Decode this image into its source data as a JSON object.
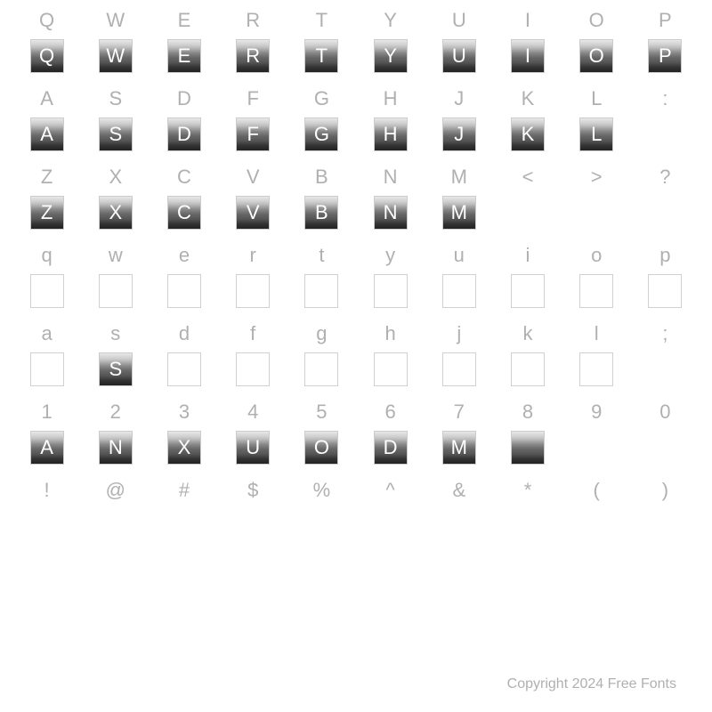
{
  "background_color": "#ffffff",
  "label_color": "#b0b0b0",
  "label_fontsize": 22,
  "glyph_size": 38,
  "glyph_letter_color": "#ffffff",
  "gradient_stops": [
    "#e8e8e8",
    "#d0d0d0",
    "#b8b8b8",
    "#888888",
    "#666666",
    "#555555",
    "#333333",
    "#222222"
  ],
  "footer_text": "Copyright 2024 Free Fonts",
  "rows": [
    {
      "keys": [
        "Q",
        "W",
        "E",
        "R",
        "T",
        "Y",
        "U",
        "I",
        "O",
        "P"
      ],
      "glyphs": [
        {
          "type": "gradient",
          "letter": "Q"
        },
        {
          "type": "gradient",
          "letter": "W"
        },
        {
          "type": "gradient",
          "letter": "E"
        },
        {
          "type": "gradient",
          "letter": "R"
        },
        {
          "type": "gradient",
          "letter": "T"
        },
        {
          "type": "gradient",
          "letter": "Y"
        },
        {
          "type": "gradient",
          "letter": "U"
        },
        {
          "type": "gradient",
          "letter": "I"
        },
        {
          "type": "gradient",
          "letter": "O"
        },
        {
          "type": "gradient",
          "letter": "P"
        }
      ]
    },
    {
      "keys": [
        "A",
        "S",
        "D",
        "F",
        "G",
        "H",
        "J",
        "K",
        "L",
        ":"
      ],
      "glyphs": [
        {
          "type": "gradient",
          "letter": "A"
        },
        {
          "type": "gradient",
          "letter": "S"
        },
        {
          "type": "gradient",
          "letter": "D"
        },
        {
          "type": "gradient",
          "letter": "F"
        },
        {
          "type": "gradient",
          "letter": "G"
        },
        {
          "type": "gradient",
          "letter": "H"
        },
        {
          "type": "gradient",
          "letter": "J"
        },
        {
          "type": "gradient",
          "letter": "K"
        },
        {
          "type": "gradient",
          "letter": "L"
        },
        {
          "type": "empty"
        }
      ]
    },
    {
      "keys": [
        "Z",
        "X",
        "C",
        "V",
        "B",
        "N",
        "M",
        "<",
        ">",
        "?"
      ],
      "glyphs": [
        {
          "type": "gradient",
          "letter": "Z"
        },
        {
          "type": "gradient",
          "letter": "X"
        },
        {
          "type": "gradient",
          "letter": "C"
        },
        {
          "type": "gradient",
          "letter": "V"
        },
        {
          "type": "gradient",
          "letter": "B"
        },
        {
          "type": "gradient",
          "letter": "N"
        },
        {
          "type": "gradient",
          "letter": "M"
        },
        {
          "type": "empty"
        },
        {
          "type": "empty"
        },
        {
          "type": "empty"
        }
      ]
    },
    {
      "keys": [
        "q",
        "w",
        "e",
        "r",
        "t",
        "y",
        "u",
        "i",
        "o",
        "p"
      ],
      "glyphs": [
        {
          "type": "lined"
        },
        {
          "type": "lined"
        },
        {
          "type": "lined"
        },
        {
          "type": "lined"
        },
        {
          "type": "lined"
        },
        {
          "type": "lined"
        },
        {
          "type": "lined"
        },
        {
          "type": "lined"
        },
        {
          "type": "lined"
        },
        {
          "type": "lined"
        }
      ]
    },
    {
      "keys": [
        "a",
        "s",
        "d",
        "f",
        "g",
        "h",
        "j",
        "k",
        "l",
        ";"
      ],
      "glyphs": [
        {
          "type": "lined"
        },
        {
          "type": "gradient",
          "letter": "S"
        },
        {
          "type": "lined"
        },
        {
          "type": "lined"
        },
        {
          "type": "lined"
        },
        {
          "type": "lined"
        },
        {
          "type": "lined"
        },
        {
          "type": "lined"
        },
        {
          "type": "lined"
        },
        {
          "type": "empty"
        }
      ]
    },
    {
      "keys": [
        "1",
        "2",
        "3",
        "4",
        "5",
        "6",
        "7",
        "8",
        "9",
        "0"
      ],
      "glyphs": [
        {
          "type": "gradient",
          "letter": "A"
        },
        {
          "type": "gradient",
          "letter": "N"
        },
        {
          "type": "gradient",
          "letter": "X"
        },
        {
          "type": "gradient",
          "letter": "U"
        },
        {
          "type": "gradient",
          "letter": "O"
        },
        {
          "type": "gradient",
          "letter": "D"
        },
        {
          "type": "gradient",
          "letter": "M"
        },
        {
          "type": "gradient",
          "letter": ""
        },
        {
          "type": "empty"
        },
        {
          "type": "empty"
        }
      ]
    },
    {
      "keys": [
        "!",
        "@",
        "#",
        "$",
        "%",
        "^",
        "&",
        "*",
        "(",
        ")"
      ],
      "glyphs": [
        {
          "type": "empty"
        },
        {
          "type": "empty"
        },
        {
          "type": "empty"
        },
        {
          "type": "empty"
        },
        {
          "type": "empty"
        },
        {
          "type": "empty"
        },
        {
          "type": "empty"
        },
        {
          "type": "empty"
        },
        {
          "type": "empty"
        },
        {
          "type": "empty"
        }
      ]
    }
  ]
}
